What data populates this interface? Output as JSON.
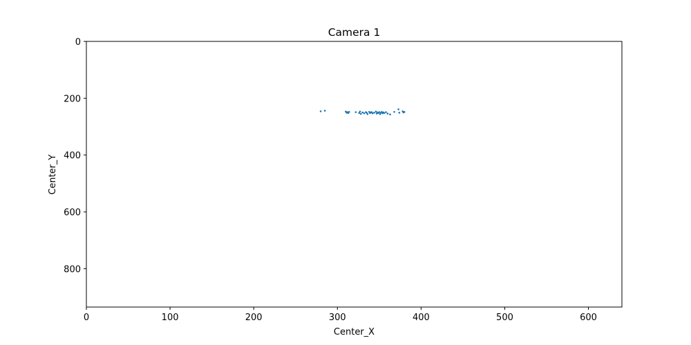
{
  "chart_data": {
    "type": "scatter",
    "title": "Camera 1",
    "xlabel": "Center_X",
    "ylabel": "Center_Y",
    "xlim": [
      0,
      640
    ],
    "ylim": [
      0,
      935
    ],
    "y_inverted": true,
    "grid": false,
    "x_ticks": [
      0,
      100,
      200,
      300,
      400,
      500,
      600
    ],
    "y_ticks": [
      0,
      200,
      400,
      600,
      800
    ],
    "color": "#1f77b4",
    "points": [
      [
        280,
        246
      ],
      [
        285,
        244
      ],
      [
        310,
        247
      ],
      [
        311,
        251
      ],
      [
        312,
        249
      ],
      [
        313,
        252
      ],
      [
        314,
        248
      ],
      [
        322,
        249
      ],
      [
        326,
        252
      ],
      [
        327,
        247
      ],
      [
        328,
        255
      ],
      [
        330,
        250
      ],
      [
        332,
        253
      ],
      [
        334,
        249
      ],
      [
        335,
        251
      ],
      [
        336,
        256
      ],
      [
        338,
        248
      ],
      [
        339,
        252
      ],
      [
        340,
        250
      ],
      [
        341,
        249
      ],
      [
        342,
        253
      ],
      [
        344,
        251
      ],
      [
        346,
        247
      ],
      [
        347,
        254
      ],
      [
        348,
        250
      ],
      [
        349,
        252
      ],
      [
        350,
        249
      ],
      [
        351,
        256
      ],
      [
        352,
        251
      ],
      [
        353,
        248
      ],
      [
        354,
        253
      ],
      [
        355,
        250
      ],
      [
        356,
        252
      ],
      [
        358,
        249
      ],
      [
        360,
        254
      ],
      [
        363,
        257
      ],
      [
        368,
        248
      ],
      [
        373,
        239
      ],
      [
        374,
        251
      ],
      [
        378,
        246
      ],
      [
        379,
        250
      ],
      [
        380,
        248
      ]
    ]
  }
}
